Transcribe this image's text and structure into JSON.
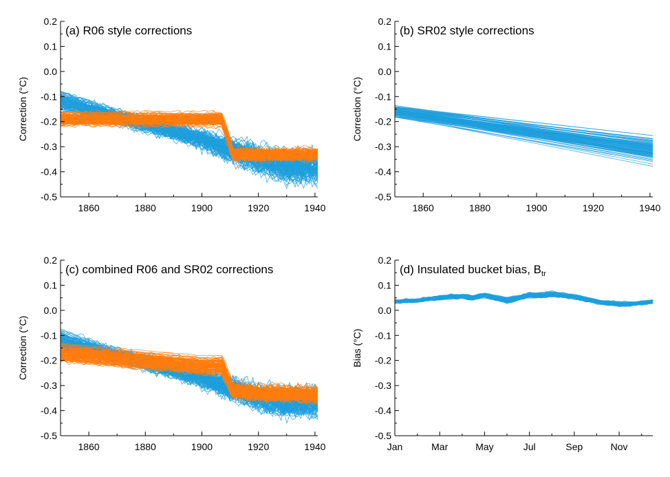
{
  "colors": {
    "blue": "#1f9fdd",
    "orange": "#ff7c0e",
    "axis": "#000000"
  },
  "chart_data": [
    {
      "id": "a",
      "type": "line",
      "title": "(a) R06 style corrections",
      "ylabel": "Correction (°C)",
      "xlim": [
        1850,
        1941
      ],
      "ylim": [
        -0.5,
        0.2
      ],
      "xticks": [
        1860,
        1880,
        1900,
        1920,
        1940
      ],
      "xtick_labels": [
        "1860",
        "1880",
        "1900",
        "1920",
        "1940"
      ],
      "yticks": [
        0.2,
        0.1,
        0.0,
        -0.1,
        -0.2,
        -0.3,
        -0.4,
        -0.5
      ],
      "ytick_labels": [
        "0.2",
        "0.1",
        "0.0",
        "-0.1",
        "-0.2",
        "-0.3",
        "-0.4",
        "-0.5"
      ],
      "series": [
        {
          "color": "blue",
          "members": 100,
          "x": [
            1850,
            1860,
            1870,
            1880,
            1890,
            1900,
            1910,
            1920,
            1930,
            1941
          ],
          "values": [
            -0.12,
            -0.15,
            -0.18,
            -0.21,
            -0.24,
            -0.27,
            -0.31,
            -0.35,
            -0.38,
            -0.38
          ],
          "spread": [
            0.06,
            0.05,
            0.04,
            0.04,
            0.04,
            0.05,
            0.06,
            0.07,
            0.08,
            0.08
          ]
        },
        {
          "color": "orange",
          "members": 100,
          "x": [
            1850,
            1860,
            1870,
            1880,
            1890,
            1900,
            1907,
            1911,
            1920,
            1930,
            1941
          ],
          "values": [
            -0.19,
            -0.19,
            -0.19,
            -0.19,
            -0.19,
            -0.19,
            -0.19,
            -0.33,
            -0.33,
            -0.33,
            -0.33
          ],
          "spread": [
            0.04,
            0.04,
            0.04,
            0.04,
            0.04,
            0.04,
            0.04,
            0.03,
            0.03,
            0.03,
            0.03
          ]
        }
      ]
    },
    {
      "id": "b",
      "type": "line",
      "title": "(b) SR02 style corrections",
      "ylabel": "Correction (°C)",
      "xlim": [
        1850,
        1941
      ],
      "ylim": [
        -0.5,
        0.2
      ],
      "xticks": [
        1860,
        1880,
        1900,
        1920,
        1940
      ],
      "xtick_labels": [
        "1860",
        "1880",
        "1900",
        "1920",
        "1940"
      ],
      "yticks": [
        0.2,
        0.1,
        0.0,
        -0.1,
        -0.2,
        -0.3,
        -0.4,
        -0.5
      ],
      "ytick_labels": [
        "0.2",
        "0.1",
        "0.0",
        "-0.1",
        "-0.2",
        "-0.3",
        "-0.4",
        "-0.5"
      ],
      "series": [
        {
          "color": "blue",
          "members": 100,
          "x": [
            1850,
            1941
          ],
          "values": [
            -0.16,
            -0.31
          ],
          "spread": [
            0.03,
            0.07
          ]
        }
      ]
    },
    {
      "id": "c",
      "type": "line",
      "title": "(c) combined R06 and SR02 corrections",
      "ylabel": "Correction (°C)",
      "xlim": [
        1850,
        1941
      ],
      "ylim": [
        -0.5,
        0.2
      ],
      "xticks": [
        1860,
        1880,
        1900,
        1920,
        1940
      ],
      "xtick_labels": [
        "1860",
        "1880",
        "1900",
        "1920",
        "1940"
      ],
      "yticks": [
        0.2,
        0.1,
        0.0,
        -0.1,
        -0.2,
        -0.3,
        -0.4,
        -0.5
      ],
      "ytick_labels": [
        "0.2",
        "0.1",
        "0.0",
        "-0.1",
        "-0.2",
        "-0.3",
        "-0.4",
        "-0.5"
      ],
      "series": [
        {
          "color": "blue",
          "members": 100,
          "x": [
            1850,
            1860,
            1870,
            1880,
            1890,
            1900,
            1910,
            1920,
            1930,
            1941
          ],
          "values": [
            -0.12,
            -0.15,
            -0.18,
            -0.21,
            -0.24,
            -0.27,
            -0.31,
            -0.35,
            -0.37,
            -0.37
          ],
          "spread": [
            0.06,
            0.05,
            0.04,
            0.04,
            0.04,
            0.05,
            0.06,
            0.07,
            0.08,
            0.08
          ]
        },
        {
          "color": "orange",
          "members": 100,
          "x": [
            1850,
            1860,
            1870,
            1880,
            1890,
            1900,
            1907,
            1911,
            1920,
            1930,
            1941
          ],
          "values": [
            -0.17,
            -0.18,
            -0.19,
            -0.2,
            -0.21,
            -0.22,
            -0.22,
            -0.32,
            -0.33,
            -0.33,
            -0.34
          ],
          "spread": [
            0.05,
            0.05,
            0.05,
            0.05,
            0.05,
            0.05,
            0.05,
            0.04,
            0.04,
            0.04,
            0.04
          ]
        }
      ]
    },
    {
      "id": "d",
      "type": "line",
      "title": "(d) Insulated bucket bias, B",
      "title_subscript": "tr",
      "ylabel": "Bias (°C)",
      "xlim": [
        1,
        12.5
      ],
      "ylim": [
        -0.5,
        0.2
      ],
      "xticks": [
        1,
        3,
        5,
        7,
        9,
        11
      ],
      "xtick_labels": [
        "Jan",
        "Mar",
        "May",
        "Jul",
        "Sep",
        "Nov"
      ],
      "yticks": [
        0.2,
        0.1,
        0.0,
        -0.1,
        -0.2,
        -0.3,
        -0.4,
        -0.5
      ],
      "ytick_labels": [
        "0.2",
        "0.1",
        "0.0",
        "-0.1",
        "-0.2",
        "-0.3",
        "-0.4",
        "-0.5"
      ],
      "series": [
        {
          "color": "blue",
          "members": 100,
          "x": [
            1,
            1.5,
            2,
            2.5,
            3,
            3.5,
            4,
            4.5,
            5,
            5.5,
            6,
            6.5,
            7,
            7.5,
            8,
            8.5,
            9,
            9.5,
            10,
            10.5,
            11,
            11.5,
            12,
            12.5
          ],
          "values": [
            0.035,
            0.038,
            0.04,
            0.045,
            0.05,
            0.055,
            0.055,
            0.05,
            0.06,
            0.05,
            0.04,
            0.05,
            0.06,
            0.06,
            0.065,
            0.06,
            0.055,
            0.045,
            0.035,
            0.03,
            0.025,
            0.025,
            0.03,
            0.035
          ],
          "spread": [
            0.008,
            0.008,
            0.008,
            0.008,
            0.01,
            0.01,
            0.01,
            0.01,
            0.012,
            0.012,
            0.015,
            0.012,
            0.012,
            0.012,
            0.012,
            0.012,
            0.01,
            0.01,
            0.01,
            0.01,
            0.01,
            0.01,
            0.008,
            0.008
          ]
        }
      ]
    }
  ]
}
